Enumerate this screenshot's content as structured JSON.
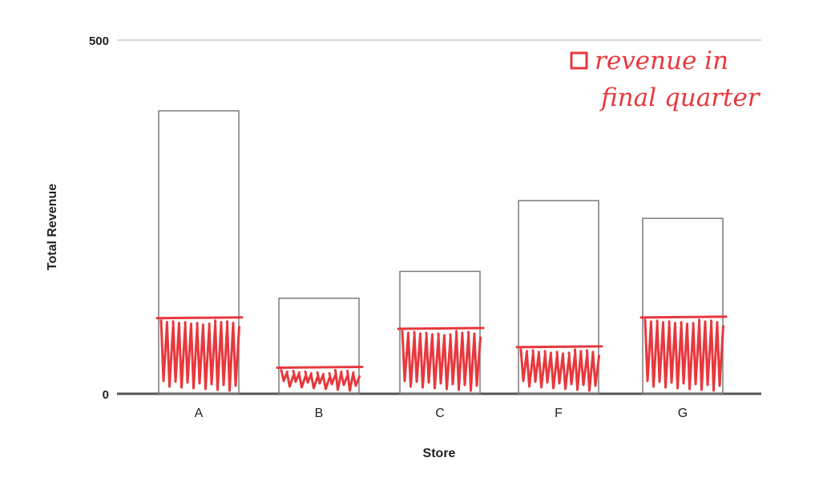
{
  "chart_data": {
    "type": "bar",
    "title": "",
    "xlabel": "Store",
    "ylabel": "Total Revenue",
    "ylim": [
      0,
      500
    ],
    "yticks": [
      "0",
      "500"
    ],
    "grid": false,
    "categories": [
      "A",
      "B",
      "C",
      "F",
      "G"
    ],
    "series": [
      {
        "values": [
          400,
          135,
          173,
          273,
          248
        ],
        "style": "outline"
      },
      {
        "name": "revenue in final quarter",
        "values": [
          108,
          38,
          93,
          67,
          109
        ],
        "style": "red scribble"
      }
    ],
    "legend": {
      "position": "top-right",
      "style": "handwritten"
    },
    "colors": {
      "bar_outline": "#7a7a7a",
      "highlight": "#e8383d",
      "axis": "#555555",
      "gridline": "#d9d9d9"
    }
  }
}
